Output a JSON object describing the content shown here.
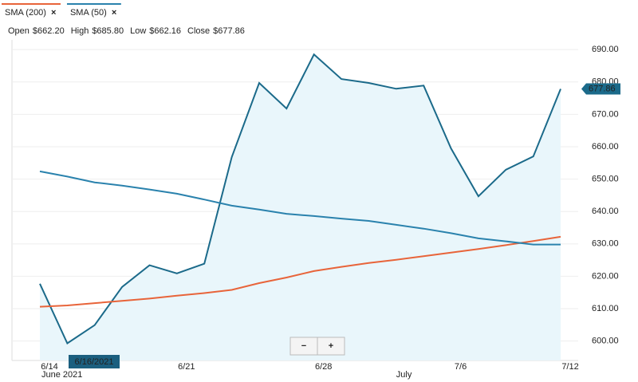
{
  "chart_data": {
    "type": "line",
    "quote": [
      {
        "label": "Open",
        "value": "$662.20",
        "color": "#222222"
      },
      {
        "label": "High",
        "value": "$685.80",
        "color": "#2e8b3a"
      },
      {
        "label": "Low",
        "value": "$662.16",
        "color": "#d0312d"
      },
      {
        "label": "Close",
        "value": "$677.86",
        "color": "#222222"
      }
    ],
    "categories": [
      "6/14",
      null,
      null,
      null,
      null,
      "6/21",
      null,
      null,
      null,
      null,
      "6/28",
      null,
      null,
      null,
      null,
      "7/6",
      null,
      null,
      null,
      "7/12"
    ],
    "category_groups": [
      "June 2021",
      null,
      null,
      null,
      null,
      null,
      null,
      null,
      null,
      null,
      null,
      null,
      null,
      "July",
      null,
      null,
      null,
      null,
      null,
      null
    ],
    "series": [
      {
        "color": "#1b6a8a",
        "fill": "#e9f6fb",
        "values": [
          617.7,
          599.3,
          604.9,
          616.7,
          623.4,
          620.9,
          623.9,
          656.8,
          679.7,
          671.8,
          688.5,
          680.9,
          679.7,
          677.9,
          678.9,
          659.5,
          644.7,
          652.9,
          657.0,
          677.86
        ]
      },
      {
        "name": "SMA (200)",
        "color": "#e8643a",
        "values": [
          610.6,
          611.0,
          611.7,
          612.4,
          613.1,
          614.0,
          614.8,
          615.8,
          617.9,
          619.6,
          621.6,
          622.9,
          624.1,
          625.1,
          626.2,
          627.3,
          628.4,
          629.6,
          630.9,
          632.2
        ]
      },
      {
        "name": "SMA (50)",
        "color": "#2a82ad",
        "values": [
          652.4,
          650.8,
          649.0,
          648.0,
          646.8,
          645.5,
          643.7,
          641.8,
          640.6,
          639.3,
          638.6,
          637.8,
          637.1,
          635.9,
          634.7,
          633.3,
          631.7,
          630.8,
          629.8,
          629.8
        ]
      }
    ],
    "last_price": 677.86,
    "cursor_label": "6/16/2021",
    "zoom_controls": [
      "−",
      "+"
    ],
    "ylim": [
      594,
      693
    ],
    "yticks": [
      {
        "value": 600,
        "label": "600.00"
      },
      {
        "value": 610,
        "label": "610.00"
      },
      {
        "value": 620,
        "label": "620.00"
      },
      {
        "value": 630,
        "label": "630.00"
      },
      {
        "value": 640,
        "label": "640.00"
      },
      {
        "value": 650,
        "label": "650.00"
      },
      {
        "value": 660,
        "label": "660.00"
      },
      {
        "value": 670,
        "label": "670.00"
      },
      {
        "value": 680,
        "label": "680.00"
      },
      {
        "value": 690,
        "label": "690.00"
      }
    ],
    "grid": true
  }
}
